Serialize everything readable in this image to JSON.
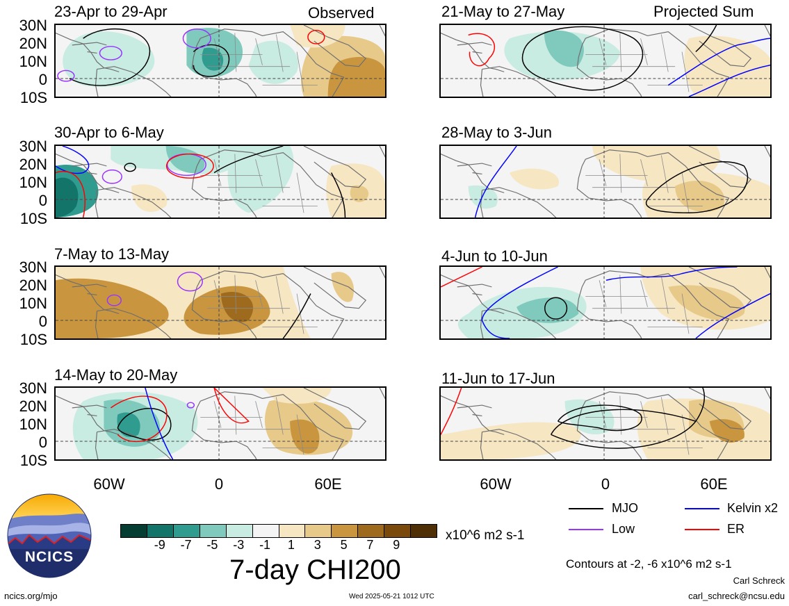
{
  "left_column_header": "Observed",
  "right_column_header": "Projected Sum",
  "lat_labels": [
    "30N",
    "20N",
    "10N",
    "0",
    "10S"
  ],
  "lon_labels": [
    "60W",
    "0",
    "60E"
  ],
  "panels": [
    {
      "title": "23-Apr to 29-Apr"
    },
    {
      "title": "30-Apr to 6-May"
    },
    {
      "title": "7-May to 13-May"
    },
    {
      "title": "14-May to 20-May"
    },
    {
      "title": "21-May to 27-May"
    },
    {
      "title": "28-May to 3-Jun"
    },
    {
      "title": "4-Jun to 10-Jun"
    },
    {
      "title": "11-Jun to 17-Jun"
    }
  ],
  "legend": {
    "items": [
      {
        "label": "MJO",
        "color": "#000000"
      },
      {
        "label": "Kelvin x2",
        "color": "#0000ff"
      },
      {
        "label": "Low",
        "color": "#9933ff"
      },
      {
        "label": "ER",
        "color": "#ff0000"
      }
    ],
    "contours_note": "Contours at -2, -6 x10^6 m2 s-1"
  },
  "colorbar": {
    "colors": [
      "#063d33",
      "#13746a",
      "#2f9c8f",
      "#7fcabc",
      "#c8ebe2",
      "#f4f4f4",
      "#f6e6c2",
      "#e7c98a",
      "#c9963f",
      "#9e6a1e",
      "#7a4a0c",
      "#4f2f05"
    ],
    "tick_labels": [
      "-9",
      "-7",
      "-5",
      "-3",
      "-1",
      "1",
      "3",
      "5",
      "7",
      "9"
    ],
    "units": "x10^6 m2 s-1",
    "title": "7-day CHI200"
  },
  "logo_text": "NCICS",
  "footer": {
    "url": "ncics.org/mjo",
    "timestamp": "Wed 2025-05-21 1012 UTC",
    "author": "Carl Schreck",
    "email": "carl_schreck@ncsu.edu"
  }
}
